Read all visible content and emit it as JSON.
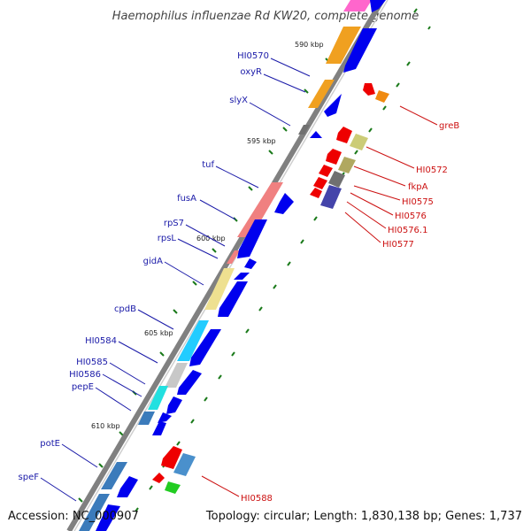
{
  "title": "Haemophilus influenzae Rd KW20, complete genome",
  "footer": {
    "accession": "Accession: NC_000907",
    "topology": "Topology: circular; Length: 1,830,138 bp; Genes: 1,737"
  },
  "scale_labels": [
    "590 kbp",
    "595 kbp",
    "600 kbp",
    "605 kbp",
    "610 kbp"
  ],
  "colors": {
    "leading_strand_gene": "#0000ee",
    "lagging_strand_gene": "#ee0000",
    "backbone": "#808080",
    "left_label": "#1a1aa8",
    "right_label": "#cc1111",
    "tick": "#1a7a1a"
  },
  "left_labels": [
    "HI0570",
    "oxyR",
    "slyX",
    "tuf",
    "fusA",
    "rpS7",
    "rpsL",
    "gidA",
    "cpdB",
    "HI0584",
    "HI0585",
    "HI0586",
    "pepE",
    "potE",
    "speF"
  ],
  "right_labels": [
    "greB",
    "HI0572",
    "fkpA",
    "HI0575",
    "HI0576",
    "HI0576.1",
    "HI0577",
    "HI0588"
  ]
}
